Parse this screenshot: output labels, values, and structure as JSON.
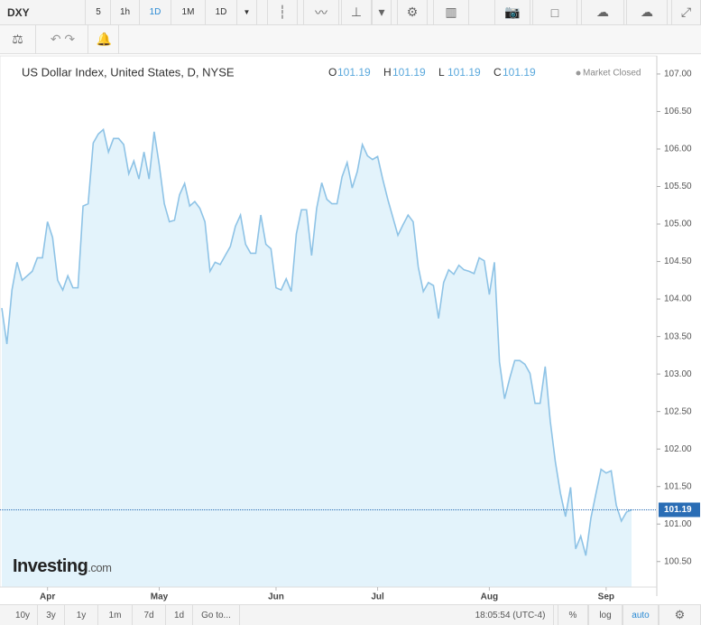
{
  "toolbar": {
    "symbol": "DXY",
    "intervals": [
      "5",
      "1h",
      "1D",
      "1M",
      "1D"
    ],
    "active_interval": 2
  },
  "chart_data": {
    "type": "area",
    "title": "US Dollar Index, United States, D, NYSE",
    "ohlc": [
      {
        "label": "O",
        "value": 101.19
      },
      {
        "label": "H",
        "value": 101.19
      },
      {
        "label": "L",
        "value": 101.19
      },
      {
        "label": "C",
        "value": 101.19
      }
    ],
    "status": "Market Closed",
    "categories": [
      null,
      null,
      null,
      null,
      null,
      null,
      null,
      null,
      null,
      "Apr",
      null,
      null,
      null,
      null,
      null,
      null,
      null,
      null,
      null,
      null,
      null,
      null,
      null,
      null,
      null,
      null,
      null,
      null,
      null,
      null,
      null,
      "May",
      null,
      null,
      null,
      null,
      null,
      null,
      null,
      null,
      null,
      null,
      null,
      null,
      null,
      null,
      null,
      null,
      null,
      null,
      null,
      null,
      null,
      null,
      "Jun",
      null,
      null,
      null,
      null,
      null,
      null,
      null,
      null,
      null,
      null,
      null,
      null,
      null,
      null,
      null,
      null,
      null,
      null,
      null,
      "Jul",
      null,
      null,
      null,
      null,
      null,
      null,
      null,
      null,
      null,
      null,
      null,
      null,
      null,
      null,
      null,
      null,
      null,
      null,
      null,
      null,
      null,
      "Aug",
      null,
      null,
      null,
      null,
      null,
      null,
      null,
      null,
      null,
      null,
      null,
      null,
      null,
      null,
      null,
      null,
      null,
      null,
      null,
      null,
      null,
      null,
      "Sep",
      null,
      null,
      null,
      null,
      null
    ],
    "series": [
      {
        "color": "#8ec3e6",
        "fill": "#e3f3fb",
        "values": [
          103.88,
          103.4,
          104.12,
          104.49,
          104.25,
          104.31,
          104.37,
          104.55,
          104.55,
          105.03,
          104.82,
          104.25,
          104.12,
          104.31,
          104.15,
          104.15,
          105.24,
          105.27,
          106.08,
          106.2,
          106.26,
          105.96,
          106.14,
          106.14,
          106.06,
          105.67,
          105.84,
          105.6,
          105.96,
          105.6,
          106.23,
          105.79,
          105.27,
          105.03,
          105.05,
          105.39,
          105.54,
          105.24,
          105.3,
          105.21,
          105.03,
          104.37,
          104.49,
          104.46,
          104.58,
          104.7,
          104.97,
          105.12,
          104.73,
          104.61,
          104.61,
          105.12,
          104.73,
          104.67,
          104.15,
          104.12,
          104.27,
          104.1,
          104.87,
          105.19,
          105.19,
          104.58,
          105.21,
          105.55,
          105.33,
          105.27,
          105.27,
          105.63,
          105.82,
          105.48,
          105.7,
          106.06,
          105.91,
          105.86,
          105.9,
          105.6,
          105.33,
          105.09,
          104.85,
          104.99,
          105.12,
          105.03,
          104.43,
          104.1,
          104.22,
          104.18,
          103.74,
          104.22,
          104.39,
          104.33,
          104.45,
          104.39,
          104.37,
          104.34,
          104.55,
          104.51,
          104.06,
          104.49,
          103.16,
          102.67,
          102.94,
          103.18,
          103.18,
          103.13,
          103.01,
          102.61,
          102.61,
          103.1,
          102.37,
          101.83,
          101.41,
          101.1,
          101.49,
          100.67,
          100.84,
          100.58,
          101.08,
          101.41,
          101.73,
          101.68,
          101.71,
          101.25,
          101.04,
          101.16,
          101.19
        ]
      }
    ],
    "ylim": [
      100.16,
      107.24
    ],
    "yticks": [
      {
        "value": 100.5,
        "label": "100.50"
      },
      {
        "value": 101,
        "label": "101.00"
      },
      {
        "value": 101.5,
        "label": "101.50"
      },
      {
        "value": 102,
        "label": "102.00"
      },
      {
        "value": 102.5,
        "label": "102.50"
      },
      {
        "value": 103,
        "label": "103.00"
      },
      {
        "value": 103.5,
        "label": "103.50"
      },
      {
        "value": 104,
        "label": "104.00"
      },
      {
        "value": 104.5,
        "label": "104.50"
      },
      {
        "value": 105,
        "label": "105.00"
      },
      {
        "value": 105.5,
        "label": "105.50"
      },
      {
        "value": 106,
        "label": "106.00"
      },
      {
        "value": 106.5,
        "label": "106.50"
      },
      {
        "value": 107,
        "label": "107.00"
      }
    ],
    "grid": false,
    "last_value_line": true
  },
  "branding": {
    "name": "Investing",
    "suffix": ".com"
  },
  "footer": {
    "ranges": [
      "10y",
      "3y",
      "1y",
      "1m",
      "7d",
      "1d",
      "Go to..."
    ],
    "time": "18:05:54 (UTC-4)",
    "options": [
      "%",
      "log",
      "auto"
    ]
  }
}
